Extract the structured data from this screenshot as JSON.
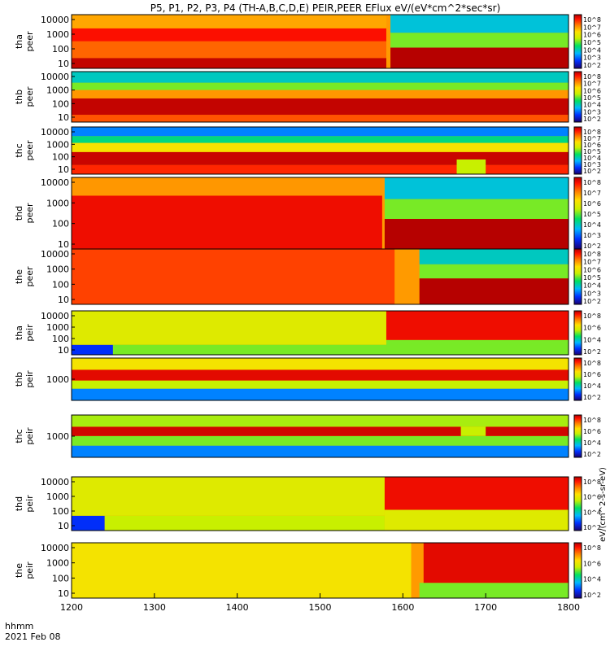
{
  "chart_data": {
    "type": "heatmap",
    "title": "P5, P1, P2, P3, P4 (TH-A,B,C,D,E) PEIR,PEER EFlux eV/(eV*cm^2*sec*sr)",
    "xlabel": "hhmm",
    "date_label": "2021 Feb 08",
    "x_range": [
      1200,
      1800
    ],
    "x_ticks": [
      "1200",
      "1300",
      "1400",
      "1500",
      "1600",
      "1700",
      "1800"
    ],
    "colorbar_label": "eV/(cm^2-s-sr-eV)",
    "colorbar_ticks": [
      "10^8",
      "10^7",
      "10^6",
      "10^5",
      "10^4",
      "10^3",
      "10^2"
    ],
    "colorbar_ticks_ion": [
      "10^8",
      "10^6",
      "10^4",
      "10^2"
    ],
    "panels": [
      {
        "id": "tha_peer",
        "label_top": "tha",
        "label_bottom": "peer",
        "yscale": "log",
        "y_ticks": [
          "10000",
          "1000",
          "100",
          "10"
        ],
        "bands": [
          {
            "e_lo": 6,
            "e_hi": 30,
            "t0": 1200,
            "t1": 1580,
            "level": 0.97
          },
          {
            "e_lo": 30,
            "e_hi": 400,
            "t0": 1200,
            "t1": 1580,
            "level": 0.78
          },
          {
            "e_lo": 400,
            "e_hi": 3000,
            "t0": 1200,
            "t1": 1580,
            "level": 0.88
          },
          {
            "e_lo": 3000,
            "e_hi": 25000,
            "t0": 1200,
            "t1": 1580,
            "level": 0.7
          },
          {
            "e_lo": 6,
            "e_hi": 150,
            "t0": 1585,
            "t1": 1800,
            "level": 0.99
          },
          {
            "e_lo": 150,
            "e_hi": 1500,
            "t0": 1585,
            "t1": 1800,
            "level": 0.45
          },
          {
            "e_lo": 1500,
            "e_hi": 25000,
            "t0": 1585,
            "t1": 1800,
            "level": 0.28
          }
        ]
      },
      {
        "id": "thb_peer",
        "label_top": "thb",
        "label_bottom": "peer",
        "yscale": "log",
        "y_ticks": [
          "10000",
          "1000",
          "100",
          "10"
        ],
        "bands": [
          {
            "e_lo": 6,
            "e_hi": 20,
            "t0": 1200,
            "t1": 1800,
            "level": 0.8
          },
          {
            "e_lo": 20,
            "e_hi": 300,
            "t0": 1200,
            "t1": 1800,
            "level": 0.97
          },
          {
            "e_lo": 300,
            "e_hi": 1200,
            "t0": 1200,
            "t1": 1800,
            "level": 0.72
          },
          {
            "e_lo": 1200,
            "e_hi": 4000,
            "t0": 1200,
            "t1": 1800,
            "level": 0.45
          },
          {
            "e_lo": 4000,
            "e_hi": 25000,
            "t0": 1200,
            "t1": 1800,
            "level": 0.3
          }
        ]
      },
      {
        "id": "thc_peer",
        "label_top": "thc",
        "label_bottom": "peer",
        "yscale": "log",
        "y_ticks": [
          "10000",
          "1000",
          "100",
          "10"
        ],
        "bands": [
          {
            "e_lo": 6,
            "e_hi": 30,
            "t0": 1200,
            "t1": 1800,
            "level": 0.85
          },
          {
            "e_lo": 30,
            "e_hi": 300,
            "t0": 1200,
            "t1": 1800,
            "level": 0.96
          },
          {
            "e_lo": 300,
            "e_hi": 1500,
            "t0": 1200,
            "t1": 1800,
            "level": 0.6
          },
          {
            "e_lo": 1500,
            "e_hi": 5000,
            "t0": 1200,
            "t1": 1800,
            "level": 0.35
          },
          {
            "e_lo": 5000,
            "e_hi": 25000,
            "t0": 1200,
            "t1": 1800,
            "level": 0.2
          },
          {
            "e_lo": 6,
            "e_hi": 80,
            "t0": 1665,
            "t1": 1700,
            "level": 0.5
          }
        ]
      },
      {
        "id": "thd_peer",
        "label_top": "thd",
        "label_bottom": "peer",
        "yscale": "log",
        "y_ticks": [
          "10000",
          "1000",
          "100",
          "10"
        ],
        "bands": [
          {
            "e_lo": 6,
            "e_hi": 3000,
            "t0": 1200,
            "t1": 1575,
            "level": 0.9
          },
          {
            "e_lo": 3000,
            "e_hi": 25000,
            "t0": 1200,
            "t1": 1575,
            "level": 0.72
          },
          {
            "e_lo": 6,
            "e_hi": 200,
            "t0": 1578,
            "t1": 1800,
            "level": 0.99
          },
          {
            "e_lo": 200,
            "e_hi": 2000,
            "t0": 1578,
            "t1": 1800,
            "level": 0.45
          },
          {
            "e_lo": 2000,
            "e_hi": 25000,
            "t0": 1578,
            "t1": 1800,
            "level": 0.28
          }
        ]
      },
      {
        "id": "the_peer",
        "label_top": "the",
        "label_bottom": "peer",
        "yscale": "log",
        "y_ticks": [
          "10000",
          "1000",
          "100",
          "10"
        ],
        "bands": [
          {
            "e_lo": 6,
            "e_hi": 25000,
            "t0": 1200,
            "t1": 1590,
            "level": 0.82
          },
          {
            "e_lo": 6,
            "e_hi": 300,
            "t0": 1620,
            "t1": 1800,
            "level": 0.99
          },
          {
            "e_lo": 300,
            "e_hi": 2500,
            "t0": 1620,
            "t1": 1800,
            "level": 0.45
          },
          {
            "e_lo": 2500,
            "e_hi": 25000,
            "t0": 1620,
            "t1": 1800,
            "level": 0.3
          }
        ]
      },
      {
        "id": "tha_peir",
        "label_top": "tha",
        "label_bottom": "peir",
        "yscale": "log",
        "y_ticks": [
          "10000",
          "1000",
          "100",
          "10"
        ],
        "bands": [
          {
            "e_lo": 6,
            "e_hi": 40,
            "t0": 1200,
            "t1": 1250,
            "level": 0.12
          },
          {
            "e_lo": 40,
            "e_hi": 25000,
            "t0": 1200,
            "t1": 1580,
            "level": 0.55
          },
          {
            "e_lo": 6,
            "e_hi": 40,
            "t0": 1250,
            "t1": 1580,
            "level": 0.45
          },
          {
            "e_lo": 6,
            "e_hi": 100,
            "t0": 1580,
            "t1": 1800,
            "level": 0.45
          },
          {
            "e_lo": 100,
            "e_hi": 25000,
            "t0": 1580,
            "t1": 1800,
            "level": 0.9
          }
        ]
      },
      {
        "id": "thb_peir",
        "label_top": "thb",
        "label_bottom": "peir",
        "yscale": "log",
        "y_ticks": [
          "1000"
        ],
        "bands": [
          {
            "e_lo": 6,
            "e_hi": 60,
            "t0": 1200,
            "t1": 1800,
            "level": 0.2
          },
          {
            "e_lo": 60,
            "e_hi": 300,
            "t0": 1200,
            "t1": 1800,
            "level": 0.5
          },
          {
            "e_lo": 300,
            "e_hi": 2500,
            "t0": 1200,
            "t1": 1800,
            "level": 0.92
          },
          {
            "e_lo": 2500,
            "e_hi": 25000,
            "t0": 1200,
            "t1": 1800,
            "level": 0.6
          }
        ]
      },
      {
        "id": "thc_peir",
        "label_top": "thc",
        "label_bottom": "peir",
        "yscale": "log",
        "y_ticks": [
          "1000"
        ],
        "bands": [
          {
            "e_lo": 6,
            "e_hi": 60,
            "t0": 1200,
            "t1": 1800,
            "level": 0.2
          },
          {
            "e_lo": 60,
            "e_hi": 400,
            "t0": 1200,
            "t1": 1800,
            "level": 0.45
          },
          {
            "e_lo": 400,
            "e_hi": 2500,
            "t0": 1200,
            "t1": 1800,
            "level": 0.95
          },
          {
            "e_lo": 2500,
            "e_hi": 25000,
            "t0": 1200,
            "t1": 1800,
            "level": 0.48
          },
          {
            "e_lo": 400,
            "e_hi": 2500,
            "t0": 1670,
            "t1": 1700,
            "level": 0.5
          }
        ]
      },
      {
        "id": "thd_peir",
        "label_top": "thd",
        "label_bottom": "peir",
        "yscale": "log",
        "y_ticks": [
          "10000",
          "1000",
          "100",
          "10"
        ],
        "bands": [
          {
            "e_lo": 6,
            "e_hi": 60,
            "t0": 1200,
            "t1": 1240,
            "level": 0.12
          },
          {
            "e_lo": 60,
            "e_hi": 25000,
            "t0": 1200,
            "t1": 1578,
            "level": 0.55
          },
          {
            "e_lo": 6,
            "e_hi": 60,
            "t0": 1240,
            "t1": 1578,
            "level": 0.5
          },
          {
            "e_lo": 6,
            "e_hi": 150,
            "t0": 1578,
            "t1": 1800,
            "level": 0.55
          },
          {
            "e_lo": 150,
            "e_hi": 25000,
            "t0": 1578,
            "t1": 1800,
            "level": 0.9
          }
        ]
      },
      {
        "id": "the_peir",
        "label_top": "the",
        "label_bottom": "peir",
        "yscale": "log",
        "y_ticks": [
          "10000",
          "1000",
          "100",
          "10"
        ],
        "bands": [
          {
            "e_lo": 6,
            "e_hi": 25000,
            "t0": 1200,
            "t1": 1610,
            "level": 0.6
          },
          {
            "e_lo": 6,
            "e_hi": 60,
            "t0": 1620,
            "t1": 1800,
            "level": 0.45
          },
          {
            "e_lo": 60,
            "e_hi": 25000,
            "t0": 1625,
            "t1": 1800,
            "level": 0.92
          }
        ]
      }
    ]
  },
  "colors": {
    "colormap": [
      "#1a0070",
      "#0030ff",
      "#00b8ff",
      "#00e060",
      "#c8f000",
      "#ffe000",
      "#ff8000",
      "#ff1000",
      "#b00000"
    ],
    "flag_red": "#e0001a",
    "fill_black": "#000000"
  }
}
